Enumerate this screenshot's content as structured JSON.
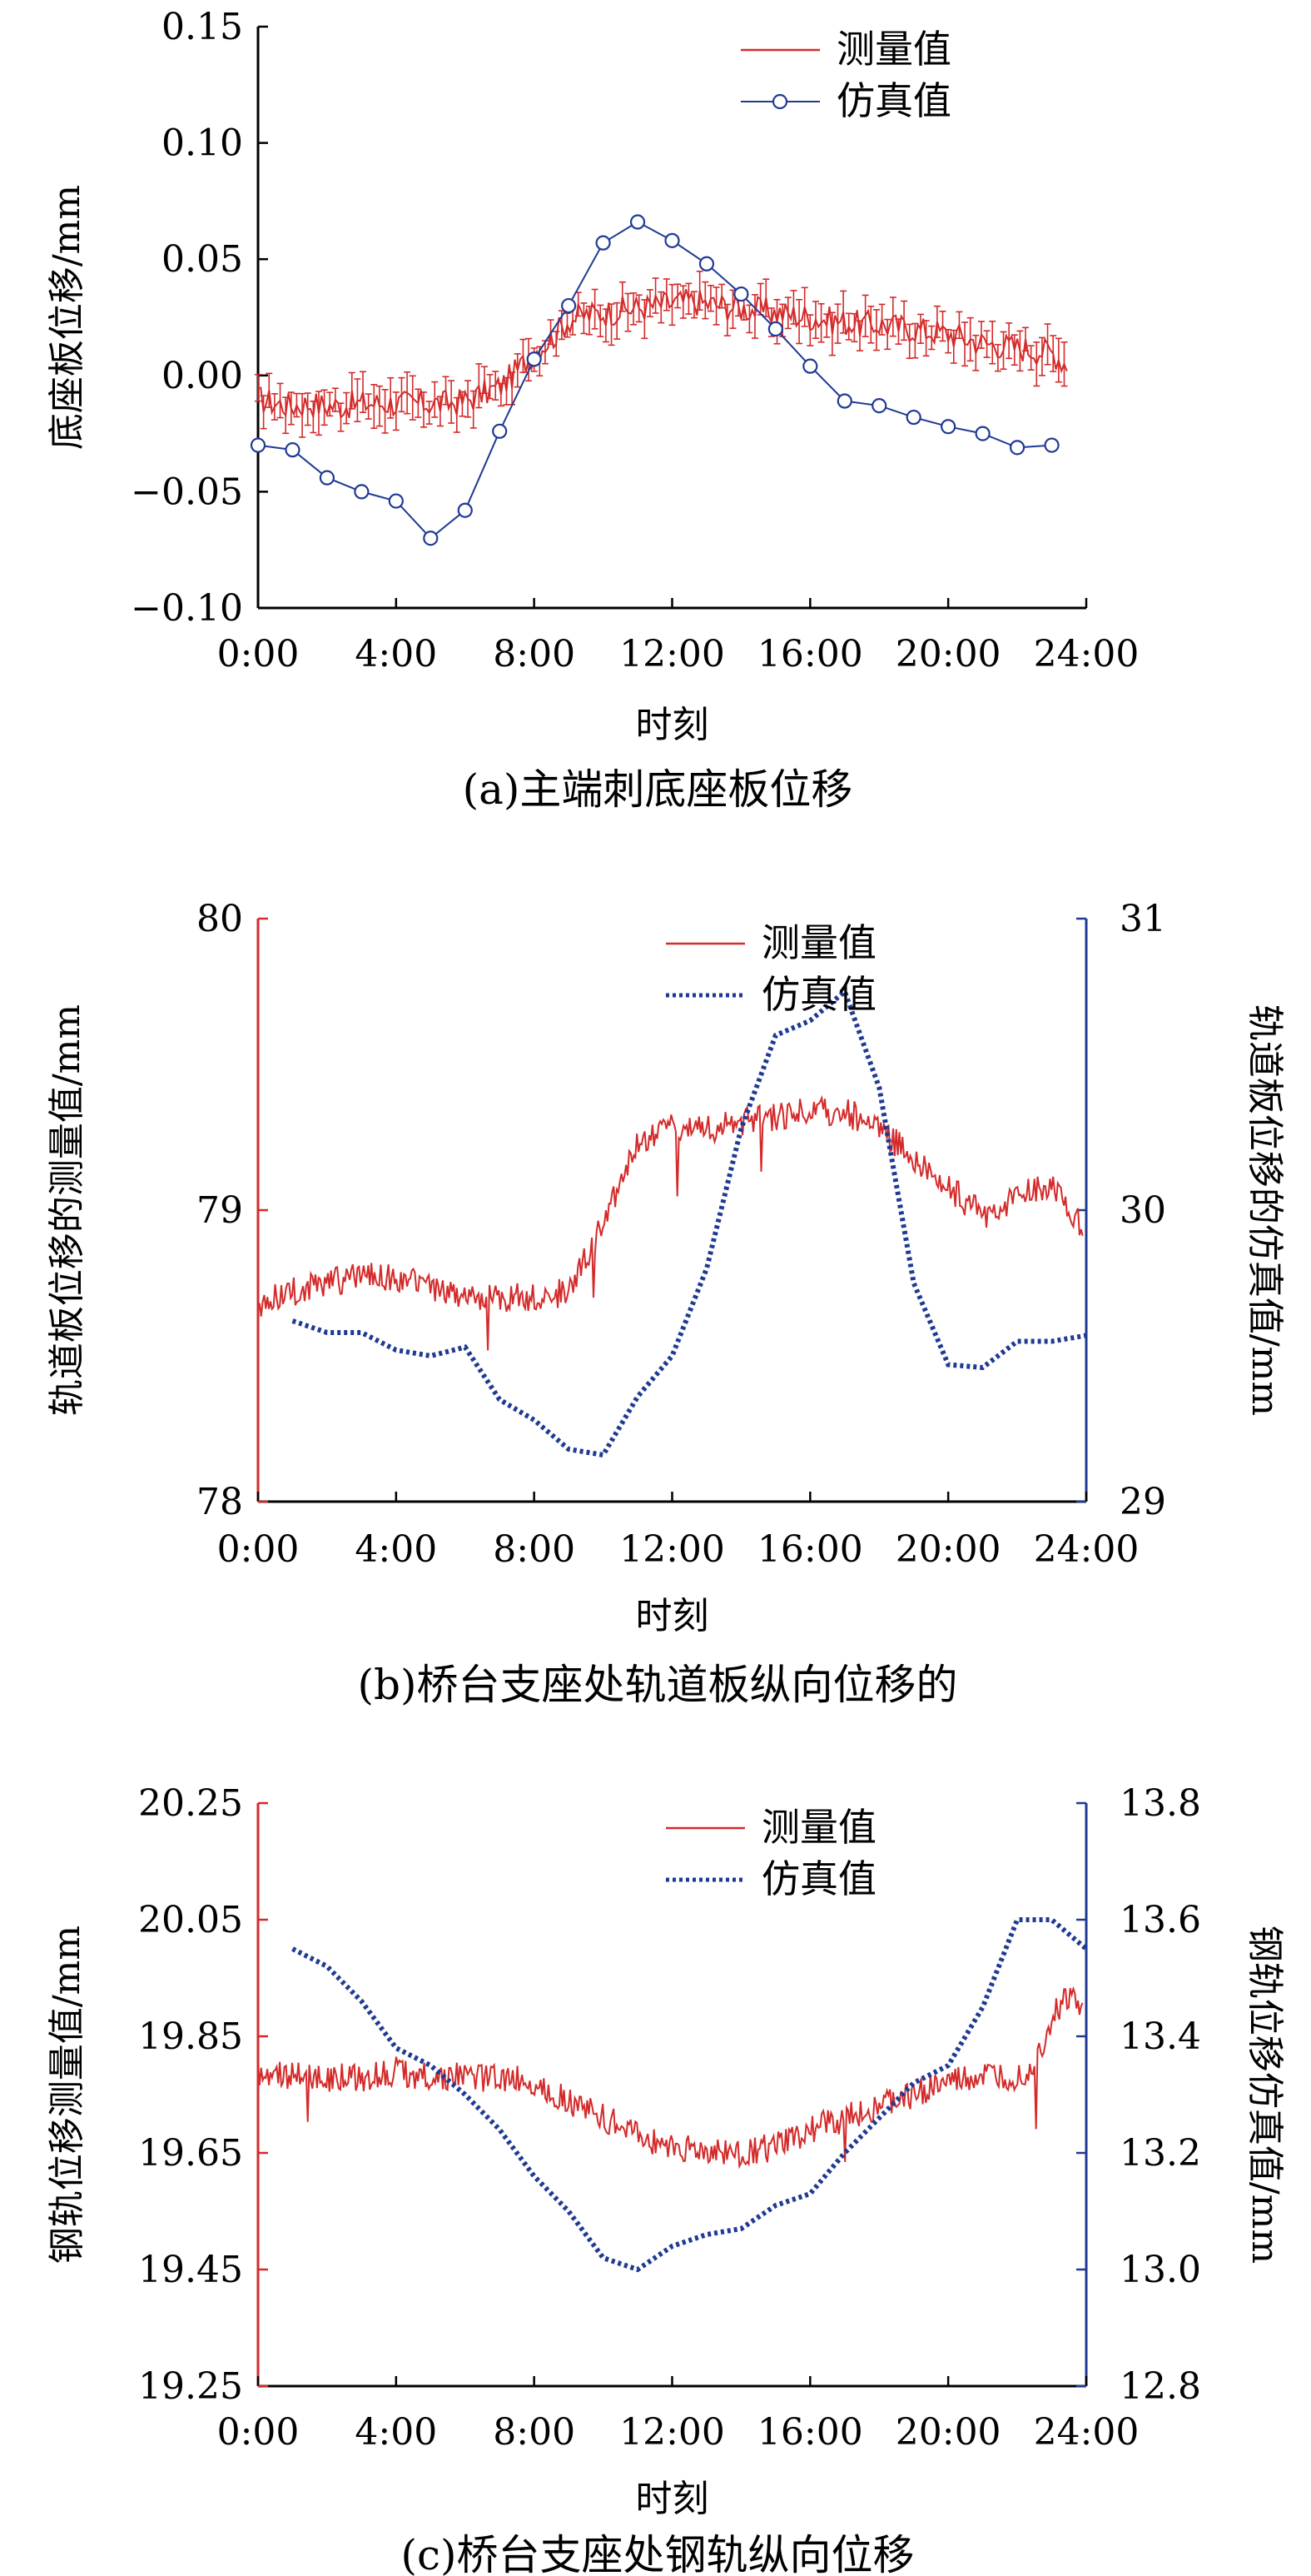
{
  "colors": {
    "measured": "#d42a2a",
    "simulated": "#1f3a93",
    "axis": "#000000"
  },
  "chart_data": [
    {
      "id": "a",
      "type": "line",
      "caption": "(a)主端刺底座板位移",
      "xlabel": "时刻",
      "ylabel": "底座板位移/mm",
      "x_ticks": [
        "0:00",
        "4:00",
        "8:00",
        "12:00",
        "16:00",
        "20:00",
        "24:00"
      ],
      "xlim": [
        0,
        24
      ],
      "ylim": [
        -0.1,
        0.15
      ],
      "y_ticks": [
        "0.15",
        "0.10",
        "0.05",
        "0.00",
        "−0.05",
        "−0.10"
      ],
      "y_tick_values": [
        0.15,
        0.1,
        0.05,
        0.0,
        -0.05,
        -0.1
      ],
      "legend_position": "top-right",
      "series": [
        {
          "name": "测量值",
          "style": "solid-with-error-bars",
          "x": [
            0,
            0.5,
            1,
            1.5,
            2,
            2.5,
            3,
            3.5,
            4,
            4.5,
            5,
            5.5,
            6,
            6.5,
            7,
            7.5,
            8,
            8.5,
            9,
            9.5,
            10,
            10.5,
            11,
            11.5,
            12,
            12.5,
            13,
            13.5,
            14,
            14.5,
            15,
            15.5,
            16,
            16.5,
            17,
            17.5,
            18,
            18.5,
            19,
            19.5,
            20,
            20.5,
            21,
            21.5,
            22,
            22.5,
            23,
            23.5
          ],
          "values": [
            -0.01,
            -0.012,
            -0.013,
            -0.012,
            -0.013,
            -0.013,
            -0.012,
            -0.012,
            -0.012,
            -0.012,
            -0.012,
            -0.012,
            -0.011,
            -0.008,
            -0.005,
            0.002,
            0.01,
            0.016,
            0.024,
            0.026,
            0.027,
            0.028,
            0.029,
            0.03,
            0.031,
            0.032,
            0.031,
            0.03,
            0.029,
            0.028,
            0.027,
            0.026,
            0.025,
            0.024,
            0.023,
            0.022,
            0.022,
            0.021,
            0.02,
            0.019,
            0.018,
            0.016,
            0.014,
            0.013,
            0.012,
            0.011,
            0.01,
            0.004
          ],
          "error": 0.008
        },
        {
          "name": "仿真值",
          "style": "line-with-circle-markers",
          "x": [
            0,
            1,
            2,
            3,
            4,
            5,
            6,
            7,
            8,
            9,
            10,
            11,
            12,
            13,
            14,
            15,
            16,
            17,
            18,
            19,
            20,
            21,
            22,
            23
          ],
          "values": [
            -0.03,
            -0.032,
            -0.044,
            -0.05,
            -0.054,
            -0.07,
            -0.058,
            -0.024,
            0.007,
            0.03,
            0.057,
            0.066,
            0.058,
            0.048,
            0.035,
            0.02,
            0.004,
            -0.011,
            -0.013,
            -0.018,
            -0.022,
            -0.025,
            -0.031,
            -0.03
          ]
        }
      ]
    },
    {
      "id": "b",
      "type": "line",
      "caption": "(b)桥台支座处轨道板纵向位移的",
      "xlabel": "时刻",
      "ylabel": "轨道板位移的测量值/mm",
      "ylabel_right": "轨道板位移的仿真值/mm",
      "x_ticks": [
        "0:00",
        "4:00",
        "8:00",
        "12:00",
        "16:00",
        "20:00",
        "24:00"
      ],
      "xlim": [
        0,
        24
      ],
      "ylim": [
        78,
        80
      ],
      "y_ticks": [
        "80",
        "79",
        "78"
      ],
      "y_tick_values": [
        80,
        79,
        78
      ],
      "ylim_right": [
        29,
        31
      ],
      "y_ticks_right": [
        "31",
        "30",
        "29"
      ],
      "y_tick_values_right": [
        31,
        30,
        29
      ],
      "legend_position": "top-center",
      "series": [
        {
          "name": "测量值",
          "axis": "left",
          "style": "solid-noisy",
          "x": [
            0,
            1,
            2,
            3,
            4,
            5,
            6,
            7,
            8,
            9,
            10,
            11,
            12,
            13,
            14,
            15,
            16,
            17,
            18,
            19,
            20,
            21,
            22,
            23,
            23.9
          ],
          "values": [
            78.68,
            78.72,
            78.75,
            78.77,
            78.77,
            78.74,
            78.71,
            78.7,
            78.7,
            78.72,
            78.95,
            79.22,
            79.28,
            79.28,
            79.3,
            79.32,
            79.34,
            79.34,
            79.28,
            79.18,
            79.08,
            78.98,
            79.05,
            79.08,
            78.95
          ],
          "noise": 0.05
        },
        {
          "name": "仿真值",
          "axis": "right",
          "style": "dotted",
          "x": [
            1,
            2,
            3,
            4,
            5,
            6,
            7,
            8,
            9,
            10,
            11,
            12,
            13,
            14,
            15,
            16,
            17,
            18,
            19,
            20,
            21,
            22,
            23,
            24
          ],
          "values": [
            29.62,
            29.58,
            29.58,
            29.52,
            29.5,
            29.53,
            29.35,
            29.28,
            29.18,
            29.16,
            29.36,
            29.5,
            29.8,
            30.28,
            30.6,
            30.65,
            30.75,
            30.42,
            29.75,
            29.47,
            29.46,
            29.55,
            29.55,
            29.57
          ]
        }
      ]
    },
    {
      "id": "c",
      "type": "line",
      "caption": "(c)桥台支座处钢轨纵向位移",
      "xlabel": "时刻",
      "ylabel": "钢轨位移测量值/mm",
      "ylabel_right": "钢轨位移仿真值/mm",
      "x_ticks": [
        "0:00",
        "4:00",
        "8:00",
        "12:00",
        "16:00",
        "20:00",
        "24:00"
      ],
      "xlim": [
        0,
        24
      ],
      "ylim": [
        19.25,
        20.25
      ],
      "y_ticks": [
        "20.25",
        "20.05",
        "19.85",
        "19.65",
        "19.45",
        "19.25"
      ],
      "y_tick_values": [
        20.25,
        20.05,
        19.85,
        19.65,
        19.45,
        19.25
      ],
      "ylim_right": [
        12.8,
        13.8
      ],
      "y_ticks_right": [
        "13.8",
        "13.6",
        "13.4",
        "13.2",
        "13.0",
        "12.8"
      ],
      "y_tick_values_right": [
        13.8,
        13.6,
        13.4,
        13.2,
        13.0,
        12.8
      ],
      "legend_position": "top-center",
      "series": [
        {
          "name": "测量值",
          "axis": "left",
          "style": "solid-noisy",
          "x": [
            0,
            1,
            2,
            3,
            4,
            5,
            6,
            7,
            8,
            9,
            10,
            11,
            12,
            13,
            14,
            15,
            16,
            17,
            18,
            19,
            20,
            21,
            22,
            22.5,
            23,
            23.5,
            23.9
          ],
          "values": [
            19.79,
            19.78,
            19.78,
            19.78,
            19.79,
            19.78,
            19.78,
            19.78,
            19.77,
            19.74,
            19.71,
            19.68,
            19.66,
            19.65,
            19.65,
            19.66,
            19.69,
            19.71,
            19.73,
            19.75,
            19.77,
            19.78,
            19.78,
            19.8,
            19.88,
            19.92,
            19.89
          ],
          "noise": 0.025
        },
        {
          "name": "仿真值",
          "axis": "right",
          "style": "dotted",
          "x": [
            1,
            2,
            3,
            4,
            5,
            6,
            7,
            8,
            9,
            10,
            11,
            12,
            13,
            14,
            15,
            16,
            17,
            18,
            19,
            20,
            21,
            22,
            23,
            24
          ],
          "values": [
            13.55,
            13.52,
            13.46,
            13.38,
            13.35,
            13.3,
            13.24,
            13.16,
            13.1,
            13.02,
            13.0,
            13.04,
            13.06,
            13.07,
            13.11,
            13.13,
            13.2,
            13.26,
            13.32,
            13.35,
            13.45,
            13.6,
            13.6,
            13.55
          ]
        }
      ]
    }
  ]
}
